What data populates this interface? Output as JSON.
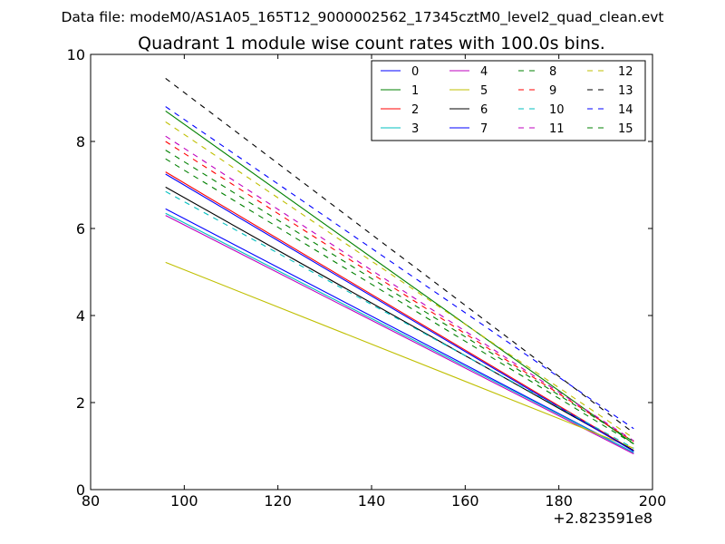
{
  "chart_data": {
    "type": "line",
    "suptitle": "Data file: modeM0/AS1A05_165T12_9000002562_17345cztM0_level2_quad_clean.evt",
    "title": "Quadrant 1 module wise count rates with 100.0s bins.",
    "xlabel": "",
    "ylabel": "",
    "x_offset_label": "+2.823591e8",
    "xlim": [
      80,
      200
    ],
    "ylim": [
      0,
      10
    ],
    "xticks": [
      80,
      100,
      120,
      140,
      160,
      180,
      200
    ],
    "yticks": [
      0,
      2,
      4,
      6,
      8,
      10
    ],
    "grid": false,
    "legend": {
      "placement": "top-right",
      "columns": 4
    },
    "x": [
      96,
      196
    ],
    "series": [
      {
        "name": "0",
        "color": "#0000ff",
        "style": "solid",
        "values": [
          6.45,
          0.85
        ]
      },
      {
        "name": "1",
        "color": "#008000",
        "style": "solid",
        "values": [
          8.7,
          1.05
        ]
      },
      {
        "name": "2",
        "color": "#ff0000",
        "style": "solid",
        "values": [
          7.3,
          0.9
        ]
      },
      {
        "name": "3",
        "color": "#00bfbf",
        "style": "solid",
        "values": [
          6.35,
          0.85
        ]
      },
      {
        "name": "4",
        "color": "#bf00bf",
        "style": "solid",
        "values": [
          6.3,
          0.82
        ]
      },
      {
        "name": "5",
        "color": "#bfbf00",
        "style": "solid",
        "values": [
          5.22,
          0.95
        ]
      },
      {
        "name": "6",
        "color": "#000000",
        "style": "solid",
        "values": [
          6.95,
          0.9
        ]
      },
      {
        "name": "7",
        "color": "#0000ff",
        "style": "solid",
        "values": [
          7.25,
          0.88
        ]
      },
      {
        "name": "8",
        "color": "#008000",
        "style": "dashed",
        "values": [
          7.6,
          1.05
        ]
      },
      {
        "name": "9",
        "color": "#ff0000",
        "style": "dashed",
        "values": [
          8.0,
          1.1
        ]
      },
      {
        "name": "10",
        "color": "#00bfbf",
        "style": "dashed",
        "values": [
          6.85,
          0.95
        ]
      },
      {
        "name": "11",
        "color": "#bf00bf",
        "style": "dashed",
        "values": [
          8.12,
          1.12
        ]
      },
      {
        "name": "12",
        "color": "#bfbf00",
        "style": "dashed",
        "values": [
          8.45,
          1.18
        ]
      },
      {
        "name": "13",
        "color": "#000000",
        "style": "dashed",
        "values": [
          9.45,
          1.3
        ]
      },
      {
        "name": "14",
        "color": "#0000ff",
        "style": "dashed",
        "values": [
          8.8,
          1.4
        ]
      },
      {
        "name": "15",
        "color": "#008000",
        "style": "dashed",
        "values": [
          7.8,
          1.1
        ]
      }
    ]
  }
}
